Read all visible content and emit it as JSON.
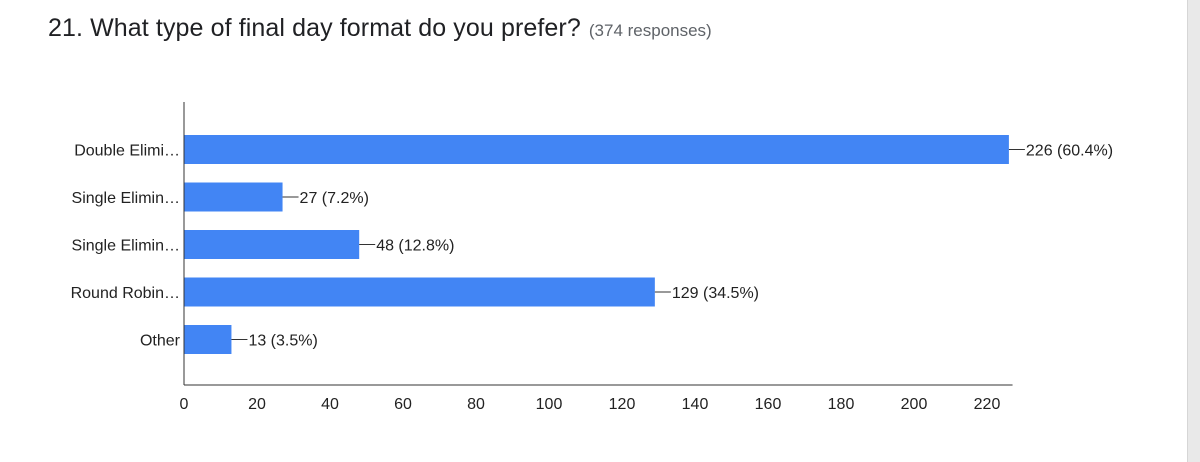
{
  "header": {
    "title": "21. What type of final day format do you prefer?",
    "responses": "(374 responses)"
  },
  "colors": {
    "bar": "#4285f4",
    "axis": "#333333",
    "text": "#222222"
  },
  "chart_data": {
    "type": "bar",
    "orientation": "horizontal",
    "categories": [
      "Double Elimi…",
      "Single Elimin…",
      "Single Elimin…",
      "Round Robin…",
      "Other"
    ],
    "values": [
      226,
      27,
      48,
      129,
      13
    ],
    "data_labels": [
      "226 (60.4%)",
      "27 (7.2%)",
      "48 (12.8%)",
      "129 (34.5%)",
      "13 (3.5%)"
    ],
    "x_ticks": [
      0,
      20,
      40,
      60,
      80,
      100,
      120,
      140,
      160,
      180,
      200,
      220
    ],
    "xlim": [
      0,
      227
    ],
    "grid": false,
    "legend": "none"
  }
}
